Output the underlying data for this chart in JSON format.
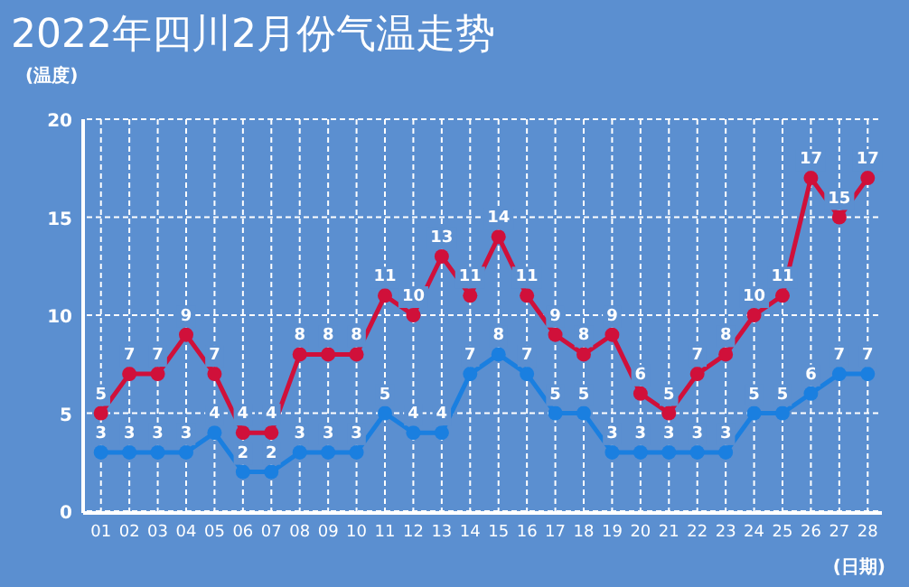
{
  "chart_data": {
    "type": "line",
    "title": "2022年四川2月份气温走势",
    "xlabel": "(日期)",
    "ylabel": "(温度)",
    "categories": [
      "01",
      "02",
      "03",
      "04",
      "05",
      "06",
      "07",
      "08",
      "09",
      "10",
      "11",
      "12",
      "13",
      "14",
      "15",
      "16",
      "17",
      "18",
      "19",
      "20",
      "21",
      "22",
      "23",
      "24",
      "25",
      "26",
      "27",
      "28"
    ],
    "series": [
      {
        "color": "#d0103a",
        "values": [
          5,
          7,
          7,
          9,
          7,
          4,
          4,
          8,
          8,
          8,
          11,
          10,
          13,
          11,
          14,
          11,
          9,
          8,
          9,
          6,
          5,
          7,
          8,
          10,
          11,
          17,
          15,
          17
        ]
      },
      {
        "color": "#1a7fe0",
        "values": [
          3,
          3,
          3,
          3,
          4,
          2,
          2,
          3,
          3,
          3,
          5,
          4,
          4,
          7,
          8,
          7,
          5,
          5,
          3,
          3,
          3,
          3,
          3,
          5,
          5,
          6,
          7,
          7
        ]
      }
    ],
    "ylim": [
      0,
      20
    ],
    "yticks": [
      0,
      5,
      10,
      15,
      20
    ],
    "grid": true,
    "data_labels": true,
    "marker": "circle",
    "line_style": "solid"
  }
}
